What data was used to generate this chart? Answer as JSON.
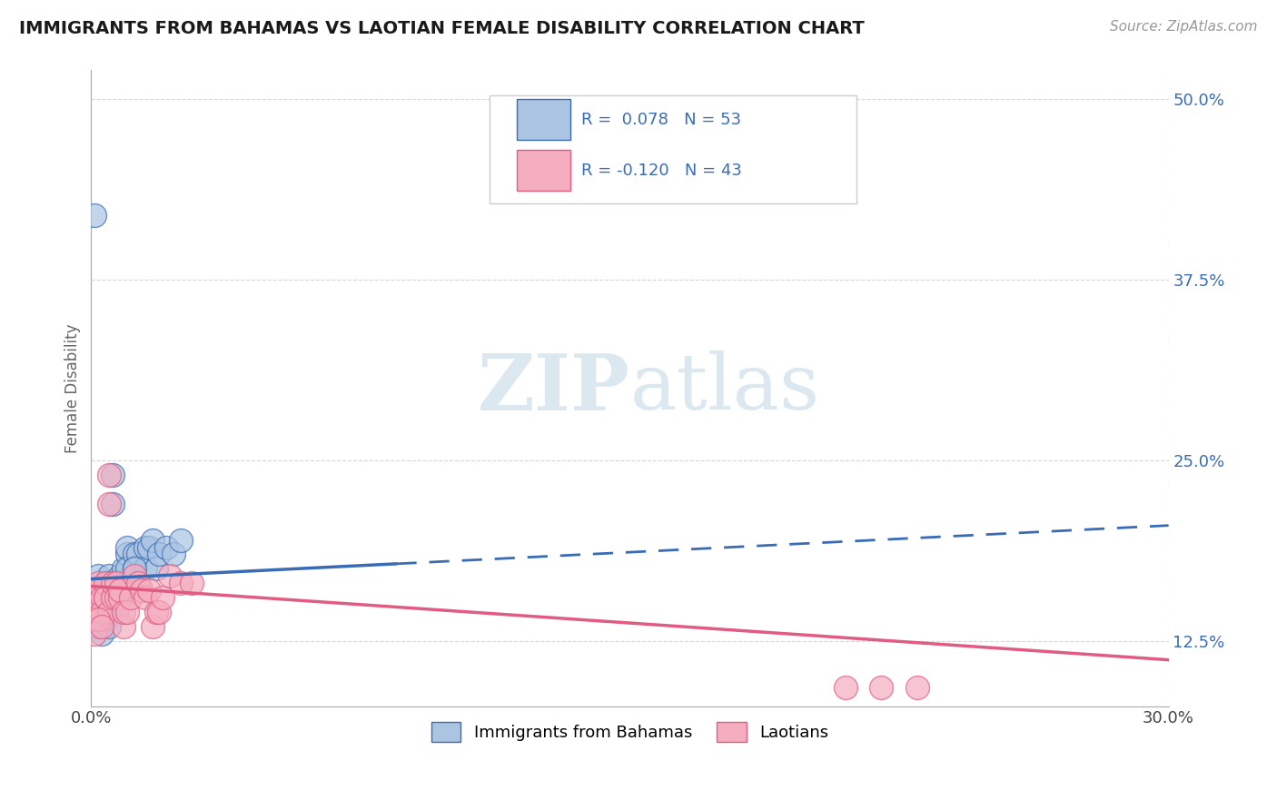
{
  "title": "IMMIGRANTS FROM BAHAMAS VS LAOTIAN FEMALE DISABILITY CORRELATION CHART",
  "source_text": "Source: ZipAtlas.com",
  "ylabel": "Female Disability",
  "xlim": [
    0.0,
    0.3
  ],
  "ylim": [
    0.08,
    0.52
  ],
  "yticks": [
    0.125,
    0.25,
    0.375,
    0.5
  ],
  "ytick_labels": [
    "12.5%",
    "25.0%",
    "37.5%",
    "50.0%"
  ],
  "xticks": [
    0.0,
    0.3
  ],
  "xtick_labels": [
    "0.0%",
    "30.0%"
  ],
  "r_blue": 0.078,
  "n_blue": 53,
  "r_pink": -0.12,
  "n_pink": 43,
  "legend_labels": [
    "Immigrants from Bahamas",
    "Laotians"
  ],
  "blue_color": "#aac4e2",
  "pink_color": "#f5adc0",
  "blue_line_color": "#3a6cb5",
  "pink_line_color": "#e05c82",
  "blue_trend_x0": 0.0,
  "blue_trend_y0": 0.168,
  "blue_trend_x1": 0.3,
  "blue_trend_y1": 0.205,
  "pink_trend_x0": 0.0,
  "pink_trend_y0": 0.163,
  "pink_trend_x1": 0.3,
  "pink_trend_y1": 0.112,
  "blue_scatter_x": [
    0.001,
    0.001,
    0.001,
    0.001,
    0.002,
    0.002,
    0.002,
    0.002,
    0.002,
    0.003,
    0.003,
    0.003,
    0.003,
    0.004,
    0.004,
    0.004,
    0.004,
    0.005,
    0.005,
    0.005,
    0.005,
    0.006,
    0.006,
    0.006,
    0.007,
    0.007,
    0.007,
    0.008,
    0.008,
    0.008,
    0.009,
    0.009,
    0.01,
    0.01,
    0.01,
    0.012,
    0.012,
    0.013,
    0.015,
    0.015,
    0.016,
    0.017,
    0.018,
    0.019,
    0.021,
    0.023,
    0.025,
    0.001,
    0.002,
    0.003,
    0.005,
    0.008,
    0.012
  ],
  "blue_scatter_y": [
    0.42,
    0.155,
    0.16,
    0.145,
    0.14,
    0.17,
    0.145,
    0.16,
    0.15,
    0.155,
    0.14,
    0.13,
    0.15,
    0.155,
    0.14,
    0.16,
    0.155,
    0.17,
    0.145,
    0.155,
    0.165,
    0.155,
    0.24,
    0.22,
    0.155,
    0.145,
    0.165,
    0.155,
    0.165,
    0.17,
    0.165,
    0.175,
    0.185,
    0.19,
    0.175,
    0.185,
    0.175,
    0.185,
    0.19,
    0.175,
    0.19,
    0.195,
    0.175,
    0.185,
    0.19,
    0.185,
    0.195,
    0.14,
    0.135,
    0.145,
    0.135,
    0.155,
    0.175
  ],
  "pink_scatter_x": [
    0.001,
    0.001,
    0.001,
    0.002,
    0.002,
    0.002,
    0.003,
    0.003,
    0.003,
    0.004,
    0.004,
    0.004,
    0.005,
    0.005,
    0.005,
    0.006,
    0.006,
    0.007,
    0.007,
    0.008,
    0.008,
    0.009,
    0.009,
    0.01,
    0.011,
    0.012,
    0.013,
    0.014,
    0.015,
    0.016,
    0.017,
    0.018,
    0.019,
    0.02,
    0.022,
    0.025,
    0.028,
    0.001,
    0.002,
    0.003,
    0.21,
    0.22,
    0.23
  ],
  "pink_scatter_y": [
    0.155,
    0.145,
    0.14,
    0.16,
    0.155,
    0.165,
    0.14,
    0.155,
    0.145,
    0.155,
    0.165,
    0.155,
    0.24,
    0.22,
    0.145,
    0.155,
    0.165,
    0.165,
    0.155,
    0.155,
    0.16,
    0.135,
    0.145,
    0.145,
    0.155,
    0.17,
    0.165,
    0.16,
    0.155,
    0.16,
    0.135,
    0.145,
    0.145,
    0.155,
    0.17,
    0.165,
    0.165,
    0.13,
    0.14,
    0.135,
    0.093,
    0.093,
    0.093
  ]
}
